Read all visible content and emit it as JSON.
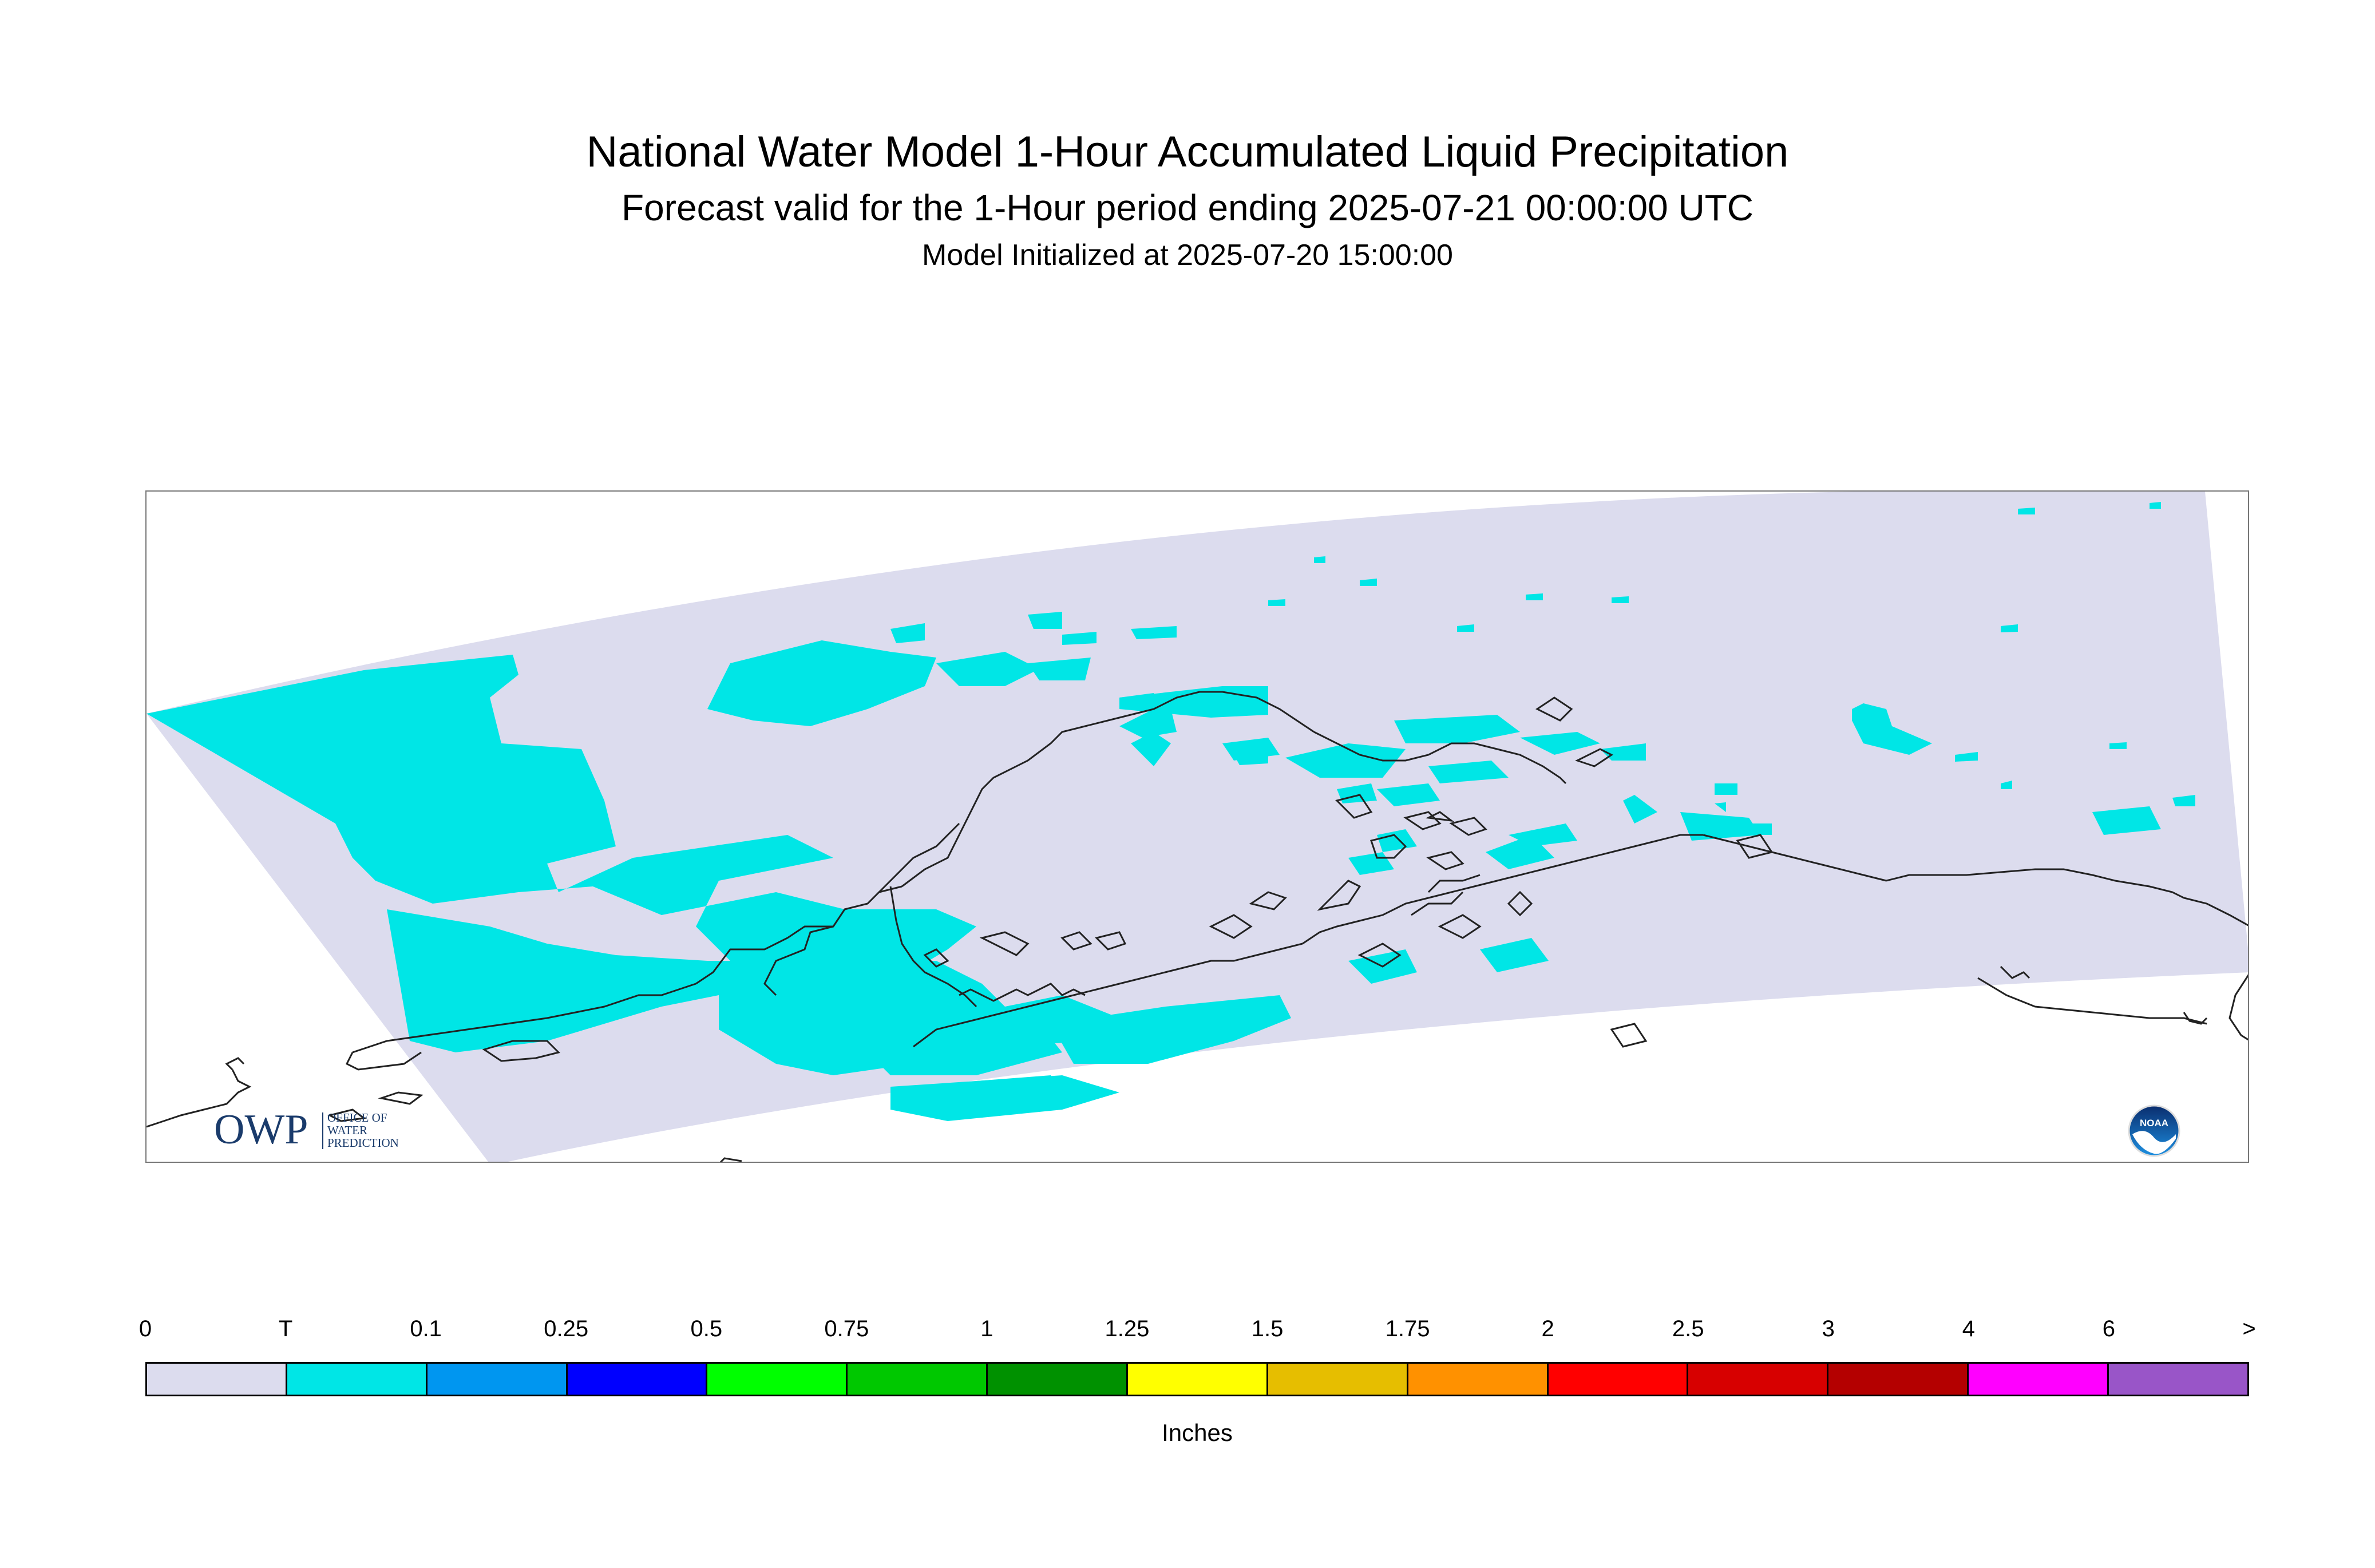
{
  "header": {
    "title": "National Water Model 1-Hour Accumulated Liquid Precipitation",
    "subtitle": "Forecast valid for the 1-Hour period ending 2025-07-21 00:00:00 UTC",
    "init": "Model Initialized at 2025-07-20 15:00:00"
  },
  "logos": {
    "owp_letters": "OWP",
    "owp_line1": "OFFICE OF",
    "owp_line2": "WATER",
    "owp_line3": "PREDICTION",
    "noaa_text": "NOAA"
  },
  "legend": {
    "labels": [
      "0",
      "T",
      "0.1",
      "0.25",
      "0.5",
      "0.75",
      "1",
      "1.25",
      "1.5",
      "1.75",
      "2",
      "2.5",
      "3",
      "4",
      "6",
      ">"
    ],
    "colors": [
      "#dcdcee",
      "#00e6e6",
      "#0096f0",
      "#0000ff",
      "#00ff00",
      "#00c800",
      "#009100",
      "#ffff00",
      "#e6be00",
      "#ff9100",
      "#ff0000",
      "#d70000",
      "#b40000",
      "#ff00ff",
      "#9955c8"
    ],
    "units": "Inches"
  },
  "map": {
    "background_color": "#dcdcee",
    "precip_color": "#00e6e6",
    "coast_color": "#222222"
  }
}
